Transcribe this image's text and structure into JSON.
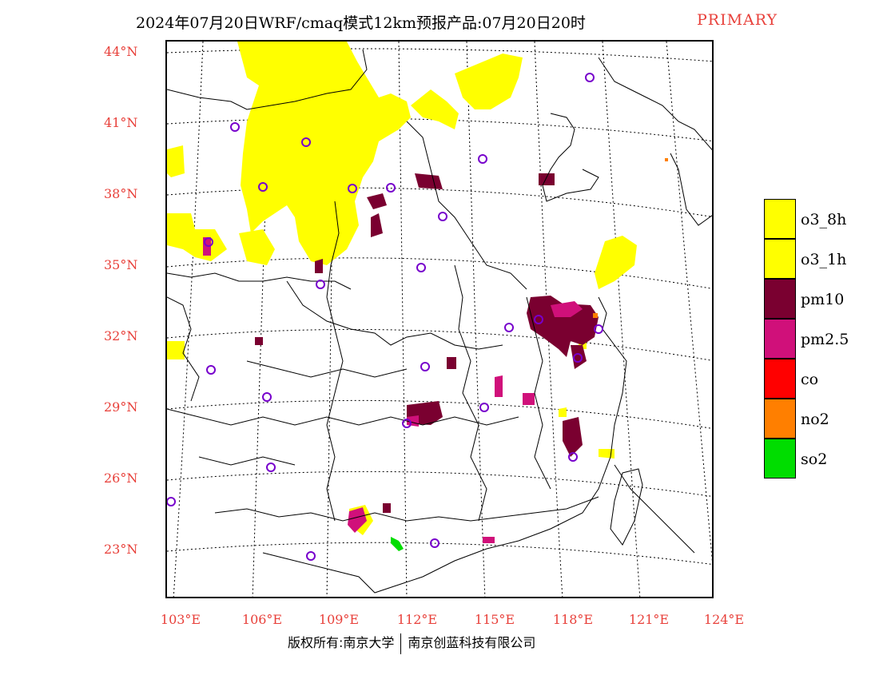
{
  "title": {
    "main": "2024年07月20日WRF/cmaq模式12km预报产品:07月20日20时",
    "pollutant": "PRIMARY"
  },
  "latitudes": [
    "44°N",
    "41°N",
    "38°N",
    "35°N",
    "32°N",
    "29°N",
    "26°N",
    "23°N"
  ],
  "longitudes": [
    "103°E",
    "106°E",
    "109°E",
    "112°E",
    "115°E",
    "118°E",
    "121°E",
    "124°E"
  ],
  "legend": [
    {
      "label": "o3_8h",
      "color": "#ffff00"
    },
    {
      "label": "o3_1h",
      "color": "#ffff00"
    },
    {
      "label": "pm10",
      "color": "#7a0030"
    },
    {
      "label": "pm2.5",
      "color": "#d0107a"
    },
    {
      "label": "co",
      "color": "#ff0000"
    },
    {
      "label": "no2",
      "color": "#ff7f00"
    },
    {
      "label": "so2",
      "color": "#00dd00"
    }
  ],
  "credit": {
    "left": "版权所有:南京大学",
    "right": "南京创蓝科技有限公司"
  }
}
